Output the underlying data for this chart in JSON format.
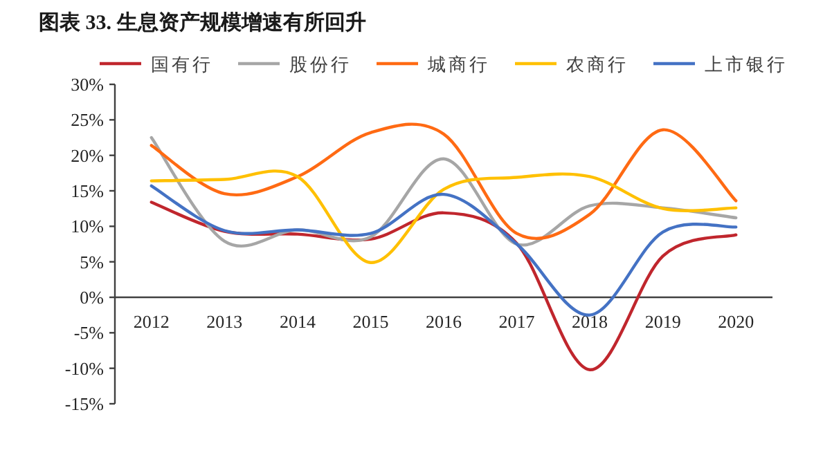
{
  "chart_data": {
    "type": "line",
    "title": "图表 33. 生息资产规模增速有所回升",
    "categories": [
      "2012",
      "2013",
      "2014",
      "2015",
      "2016",
      "2017",
      "2018",
      "2019",
      "2020"
    ],
    "series": [
      {
        "name": "国有行",
        "color": "#c0262d",
        "values": [
          13.4,
          9.3,
          8.9,
          8.2,
          11.9,
          7.6,
          -10.2,
          5.8,
          8.8
        ]
      },
      {
        "name": "股份行",
        "color": "#a6a6a6",
        "values": [
          22.5,
          7.9,
          9.5,
          8.5,
          19.5,
          7.5,
          12.9,
          12.6,
          11.2
        ]
      },
      {
        "name": "城商行",
        "color": "#ff6a13",
        "values": [
          21.4,
          14.6,
          17.0,
          23.2,
          23.0,
          9.0,
          11.7,
          23.6,
          13.6
        ]
      },
      {
        "name": "农商行",
        "color": "#ffc000",
        "values": [
          16.4,
          16.6,
          17.0,
          4.9,
          15.2,
          16.9,
          17.0,
          12.5,
          12.6
        ]
      },
      {
        "name": "上市银行",
        "color": "#4472c4",
        "values": [
          15.7,
          9.4,
          9.5,
          9.0,
          14.5,
          7.5,
          -2.5,
          9.2,
          9.9
        ]
      }
    ],
    "ylim": [
      -15,
      30
    ],
    "yticks": [
      {
        "value": -15,
        "label": "-15%"
      },
      {
        "value": -10,
        "label": "-10%"
      },
      {
        "value": -5,
        "label": "-5%"
      },
      {
        "value": 0,
        "label": "0%"
      },
      {
        "value": 5,
        "label": "5%"
      },
      {
        "value": 10,
        "label": "10%"
      },
      {
        "value": 15,
        "label": "15%"
      },
      {
        "value": 20,
        "label": "20%"
      },
      {
        "value": 25,
        "label": "25%"
      },
      {
        "value": 30,
        "label": "30%"
      }
    ],
    "legend": "top"
  }
}
